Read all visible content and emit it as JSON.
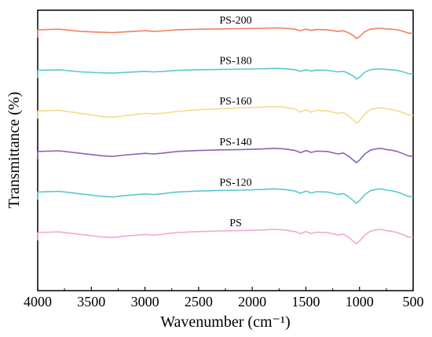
{
  "chart_data": {
    "type": "line",
    "xlabel": "Wavenumber (cm⁻¹)",
    "ylabel": "Transmittance (%)",
    "xlim": [
      4000,
      500
    ],
    "x_reversed": true,
    "x_ticks": [
      4000,
      3500,
      3000,
      2500,
      2000,
      1500,
      1000,
      500
    ],
    "y_ticks_shown": false,
    "grid": false,
    "legend": "none (labels placed above each trace)",
    "stacked_offset": true,
    "x": [
      4000,
      3800,
      3600,
      3400,
      3300,
      3200,
      3000,
      2920,
      2850,
      2700,
      2500,
      2300,
      2100,
      1900,
      1800,
      1700,
      1600,
      1550,
      1500,
      1450,
      1400,
      1300,
      1200,
      1150,
      1100,
      1050,
      1030,
      1000,
      950,
      900,
      850,
      800,
      750,
      700,
      650,
      600,
      550,
      500
    ],
    "series": [
      {
        "name": "PS-200",
        "color": "#f08060",
        "offset": 6.5,
        "values": [
          0,
          0.02,
          -0.05,
          -0.08,
          -0.09,
          -0.07,
          -0.03,
          -0.05,
          -0.04,
          0,
          0.02,
          0.03,
          0.04,
          0.05,
          0.06,
          0.05,
          0.02,
          -0.03,
          0.02,
          -0.02,
          0.01,
          0,
          -0.05,
          -0.03,
          -0.1,
          -0.2,
          -0.28,
          -0.22,
          -0.06,
          0.02,
          0.04,
          0.05,
          0.03,
          0.02,
          0,
          -0.04,
          -0.1,
          -0.12
        ]
      },
      {
        "name": "PS-180",
        "color": "#5cc8cc",
        "offset": 5.2,
        "values": [
          0,
          0.02,
          -0.05,
          -0.08,
          -0.09,
          -0.07,
          -0.03,
          -0.05,
          -0.04,
          0,
          0.02,
          0.03,
          0.04,
          0.05,
          0.06,
          0.05,
          0.02,
          -0.03,
          0.02,
          -0.02,
          0.01,
          0,
          -0.05,
          -0.03,
          -0.1,
          -0.2,
          -0.28,
          -0.22,
          -0.06,
          0.02,
          0.04,
          0.05,
          0.03,
          0.02,
          0,
          -0.04,
          -0.1,
          -0.12
        ]
      },
      {
        "name": "PS-160",
        "color": "#f2dd8c",
        "offset": 3.9,
        "values": [
          0,
          0.02,
          -0.08,
          -0.18,
          -0.2,
          -0.16,
          -0.08,
          -0.1,
          -0.08,
          -0.02,
          0.04,
          0.07,
          0.1,
          0.12,
          0.14,
          0.12,
          0.06,
          -0.04,
          0.04,
          -0.04,
          0.02,
          0,
          -0.08,
          -0.05,
          -0.16,
          -0.32,
          -0.4,
          -0.32,
          -0.1,
          0.04,
          0.08,
          0.1,
          0.07,
          0.04,
          0,
          -0.05,
          -0.12,
          -0.15
        ]
      },
      {
        "name": "PS-140",
        "color": "#8c60b8",
        "offset": 2.6,
        "values": [
          0,
          0.02,
          -0.06,
          -0.14,
          -0.16,
          -0.12,
          -0.06,
          -0.08,
          -0.06,
          0,
          0.03,
          0.05,
          0.06,
          0.08,
          0.1,
          0.08,
          0.03,
          -0.04,
          0.03,
          -0.03,
          0.01,
          0,
          -0.08,
          -0.05,
          -0.16,
          -0.3,
          -0.36,
          -0.28,
          -0.08,
          0.04,
          0.08,
          0.1,
          0.06,
          0.04,
          0,
          -0.06,
          -0.14,
          -0.16
        ]
      },
      {
        "name": "PS-120",
        "color": "#5cc8cc",
        "offset": 1.3,
        "values": [
          0,
          0.02,
          -0.06,
          -0.14,
          -0.16,
          -0.12,
          -0.06,
          -0.08,
          -0.06,
          0,
          0.03,
          0.05,
          0.06,
          0.08,
          0.1,
          0.08,
          0.03,
          -0.04,
          0.03,
          -0.03,
          0.01,
          0,
          -0.08,
          -0.05,
          -0.16,
          -0.3,
          -0.36,
          -0.28,
          -0.08,
          0.04,
          0.08,
          0.1,
          0.06,
          0.04,
          0,
          -0.06,
          -0.14,
          -0.16
        ]
      },
      {
        "name": "PS",
        "color": "#f4a6d4",
        "offset": 0,
        "values": [
          0,
          0.02,
          -0.06,
          -0.14,
          -0.16,
          -0.12,
          -0.06,
          -0.08,
          -0.06,
          0,
          0.03,
          0.05,
          0.06,
          0.08,
          0.1,
          0.08,
          0.03,
          -0.04,
          0.03,
          -0.03,
          0.01,
          0,
          -0.08,
          -0.05,
          -0.16,
          -0.3,
          -0.36,
          -0.28,
          -0.08,
          0.04,
          0.08,
          0.1,
          0.06,
          0.04,
          0,
          -0.06,
          -0.14,
          -0.16
        ]
      }
    ]
  }
}
